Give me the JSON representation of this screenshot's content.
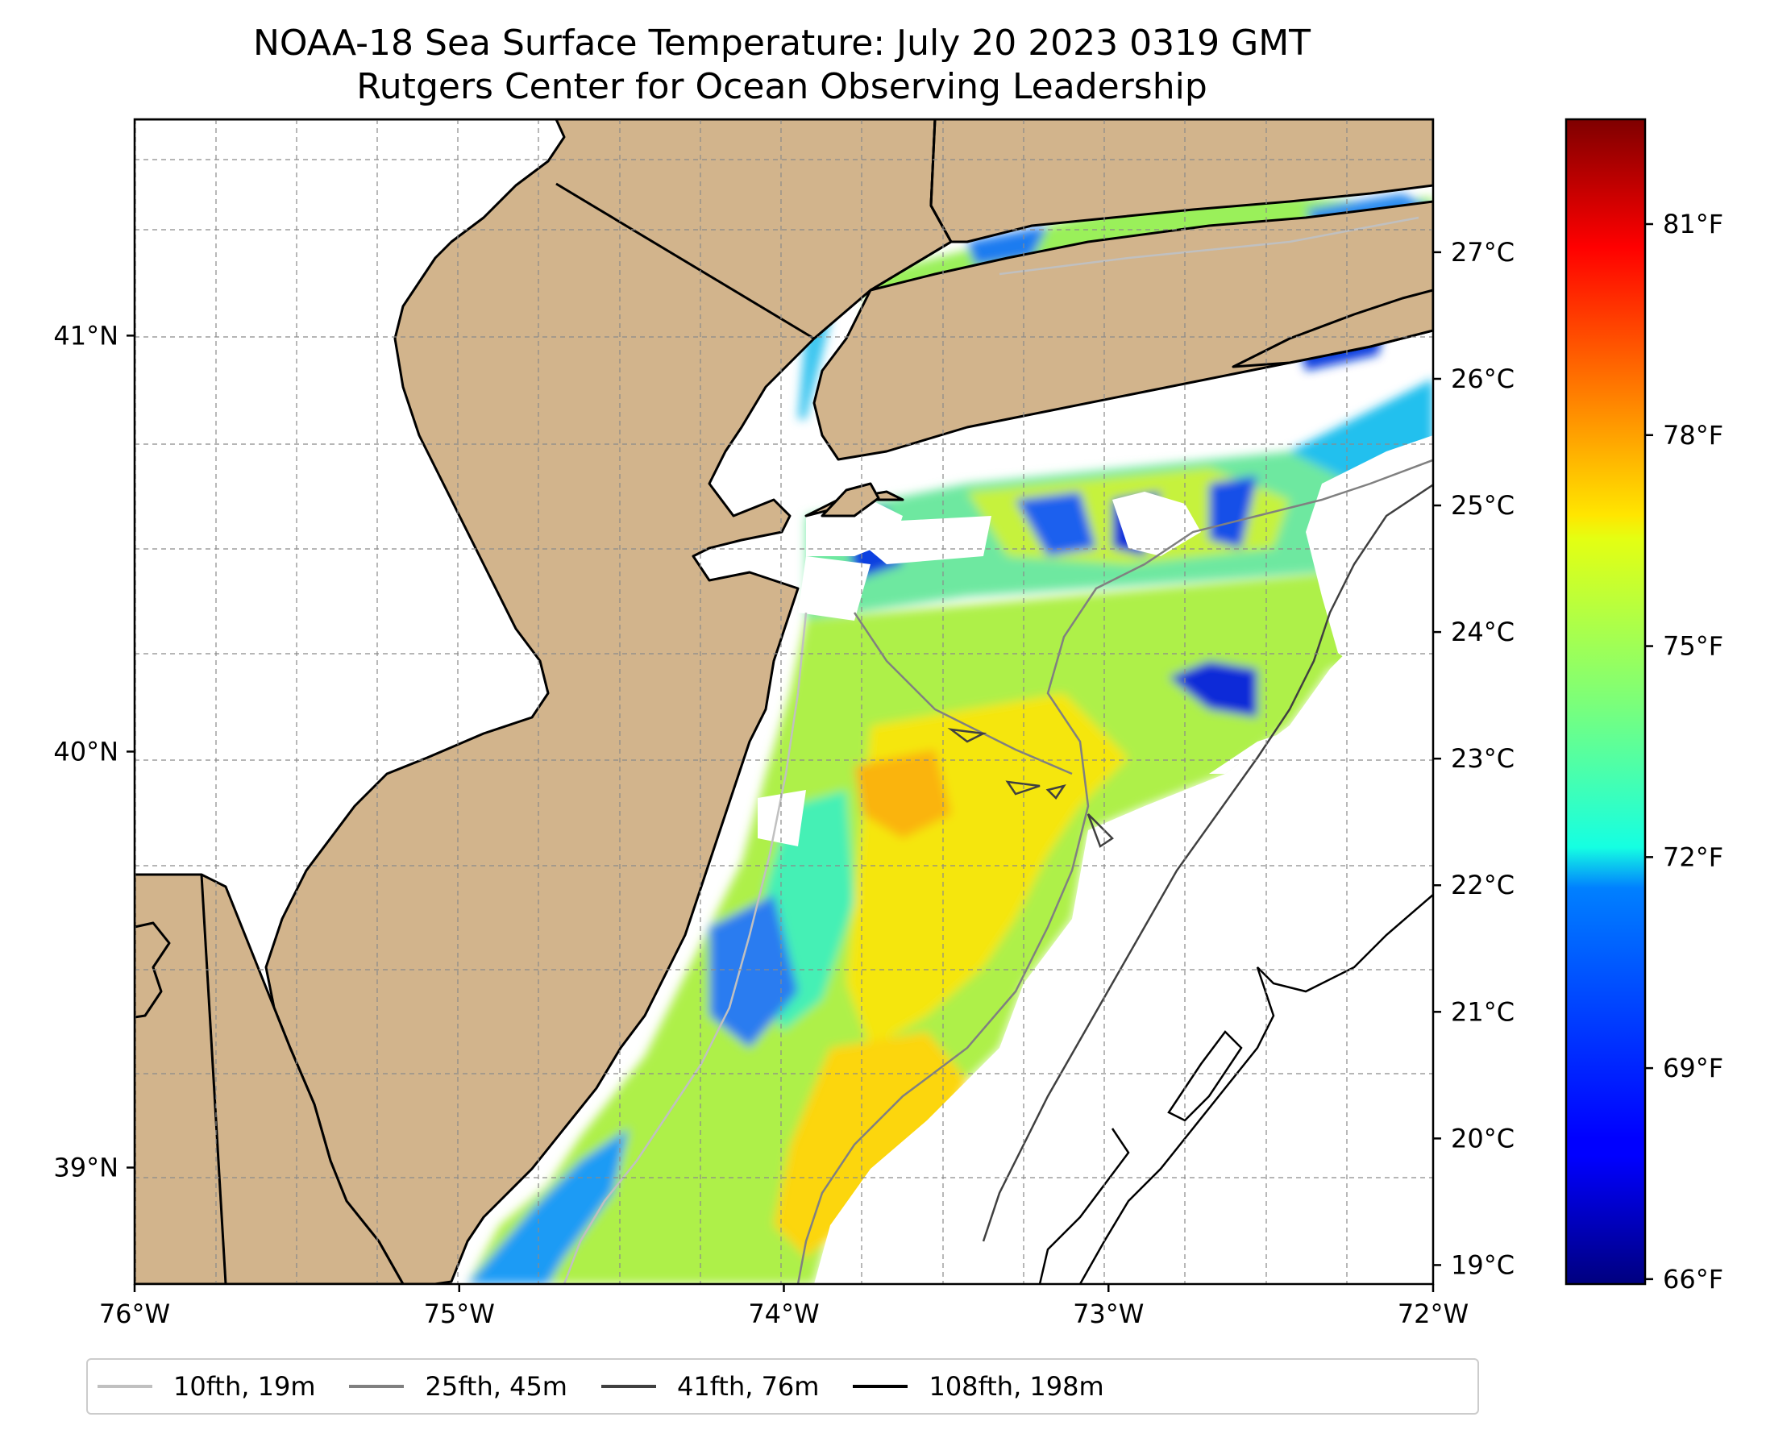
{
  "title": {
    "line1": "NOAA-18 Sea Surface Temperature: July 20 2023 0319 GMT",
    "line2": "Rutgers Center for Ocean Observing Leadership"
  },
  "map": {
    "lon_range": [
      -76,
      -72
    ],
    "lat_range": [
      38.72,
      41.52
    ],
    "land_color": "#d2b48c",
    "no_data_color": "#ffffff",
    "gridlines": true,
    "x_ticks": [
      {
        "value": -76,
        "label": "76°W"
      },
      {
        "value": -75,
        "label": "75°W"
      },
      {
        "value": -74,
        "label": "74°W"
      },
      {
        "value": -73,
        "label": "73°W"
      },
      {
        "value": -72,
        "label": "72°W"
      }
    ],
    "y_ticks": [
      {
        "value": 41,
        "label": "41°N"
      },
      {
        "value": 40,
        "label": "40°N"
      },
      {
        "value": 39,
        "label": "39°N"
      }
    ]
  },
  "colorbar": {
    "colormap": "jet",
    "celsius_range": [
      18.85,
      28.05
    ],
    "celsius_ticks": [
      {
        "value": 19,
        "label": "19°C"
      },
      {
        "value": 20,
        "label": "20°C"
      },
      {
        "value": 21,
        "label": "21°C"
      },
      {
        "value": 22,
        "label": "22°C"
      },
      {
        "value": 23,
        "label": "23°C"
      },
      {
        "value": 24,
        "label": "24°C"
      },
      {
        "value": 25,
        "label": "25°C"
      },
      {
        "value": 26,
        "label": "26°C"
      },
      {
        "value": 27,
        "label": "27°C"
      }
    ],
    "fahrenheit_ticks": [
      {
        "value": 66,
        "label": "66°F"
      },
      {
        "value": 69,
        "label": "69°F"
      },
      {
        "value": 72,
        "label": "72°F"
      },
      {
        "value": 75,
        "label": "75°F"
      },
      {
        "value": 78,
        "label": "78°F"
      },
      {
        "value": 81,
        "label": "81°F"
      }
    ]
  },
  "legend": [
    {
      "label": "10fth, 19m",
      "color": "#c0c0c0"
    },
    {
      "label": "25fth, 45m",
      "color": "#808080"
    },
    {
      "label": "41fth, 76m",
      "color": "#404040"
    },
    {
      "label": "108fth, 198m",
      "color": "#000000"
    }
  ]
}
